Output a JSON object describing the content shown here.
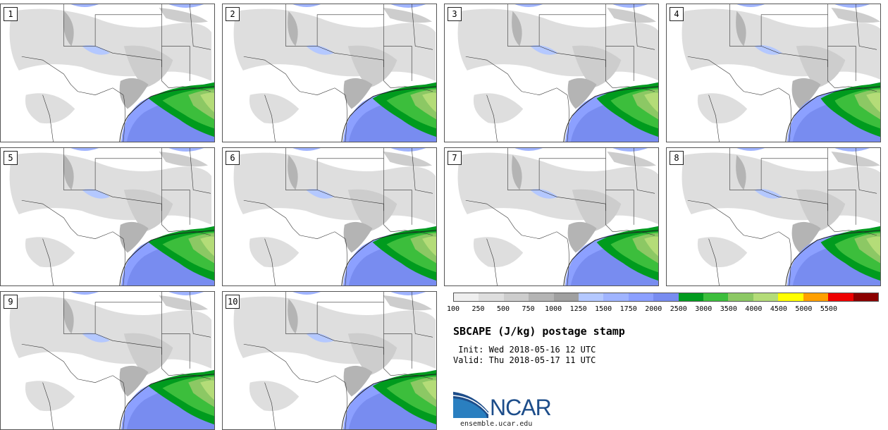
{
  "panels": [
    {
      "label": "1"
    },
    {
      "label": "2"
    },
    {
      "label": "3"
    },
    {
      "label": "4"
    },
    {
      "label": "5"
    },
    {
      "label": "6"
    },
    {
      "label": "7"
    },
    {
      "label": "8"
    },
    {
      "label": "9"
    },
    {
      "label": "10"
    }
  ],
  "colorbar": {
    "colors": [
      "#efefef",
      "#dedede",
      "#cdcdcd",
      "#b4b4b4",
      "#a0a0a0",
      "#b4c8ff",
      "#a0b4ff",
      "#8ca0ff",
      "#788cf0",
      "#009b1e",
      "#3cbe3c",
      "#8cc864",
      "#b4dc78",
      "#ffff00",
      "#ffa000",
      "#ee0000",
      "#8b0000"
    ],
    "ticks": [
      "100",
      "250",
      "500",
      "750",
      "1000",
      "1250",
      "1500",
      "1750",
      "2000",
      "2500",
      "3000",
      "3500",
      "4000",
      "4500",
      "5000",
      "5500"
    ]
  },
  "title": "SBCAPE (J/kg) postage stamp",
  "init_label": "Init:",
  "init_value": "Wed 2018-05-16 12 UTC",
  "valid_label": "Valid:",
  "valid_value": "Thu 2018-05-17 11 UTC",
  "logo_text": "NCAR",
  "website": "ensemble.ucar.edu"
}
